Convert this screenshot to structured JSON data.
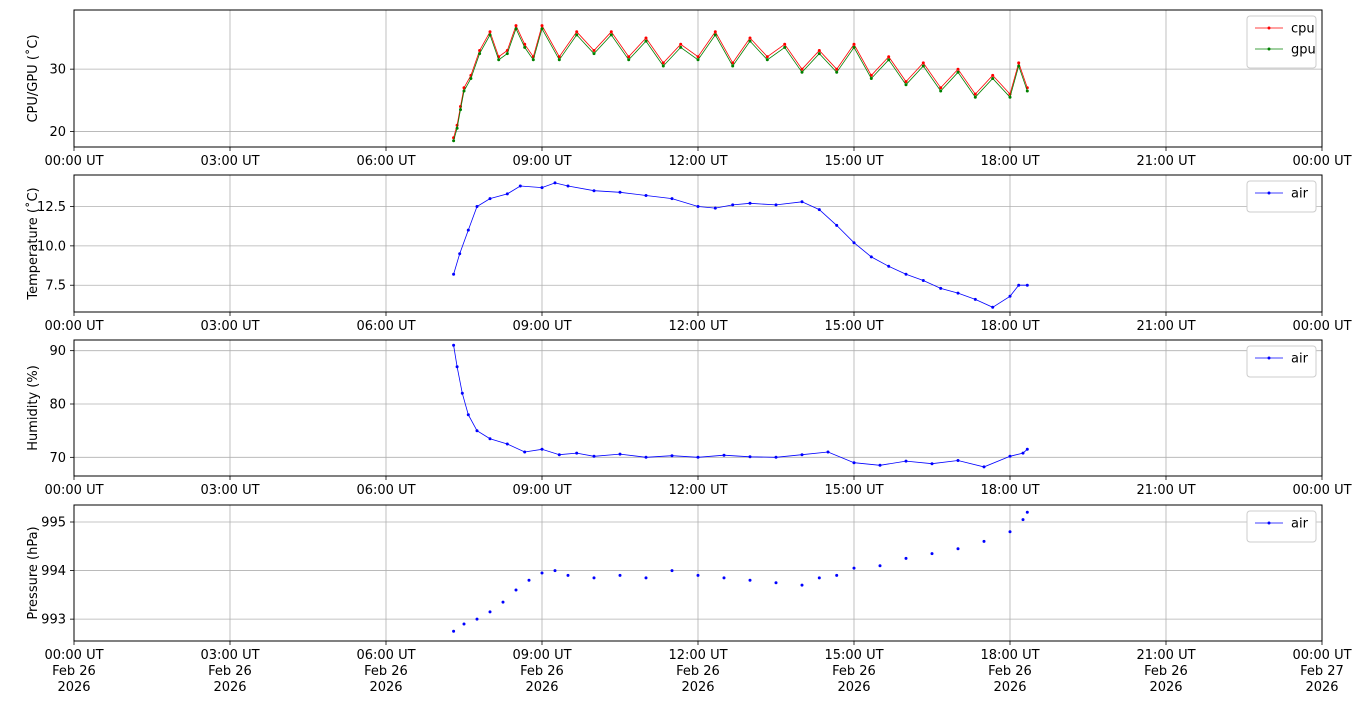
{
  "chart_data": [
    {
      "type": "line",
      "ylabel": "CPU/GPU (˚C)",
      "ylim": [
        17.5,
        39.5
      ],
      "yticks": [
        20,
        30
      ],
      "x_range": [
        "2026-02-26T00:00",
        "2026-02-27T00:00"
      ],
      "xtick_labels": [
        "00:00 UT",
        "03:00 UT",
        "06:00 UT",
        "09:00 UT",
        "12:00 UT",
        "15:00 UT",
        "18:00 UT",
        "21:00 UT",
        "00:00 UT"
      ],
      "grid": true,
      "legend": "top-right",
      "series": [
        {
          "name": "cpu",
          "color": "#ff0000",
          "x": [
            "07:18",
            "07:22",
            "07:26",
            "07:30",
            "07:38",
            "07:48",
            "08:00",
            "08:10",
            "08:20",
            "08:30",
            "08:40",
            "08:50",
            "09:00",
            "09:20",
            "09:40",
            "10:00",
            "10:20",
            "10:40",
            "11:00",
            "11:20",
            "11:40",
            "12:00",
            "12:20",
            "12:40",
            "13:00",
            "13:20",
            "13:40",
            "14:00",
            "14:20",
            "14:40",
            "15:00",
            "15:20",
            "15:40",
            "16:00",
            "16:20",
            "16:40",
            "17:00",
            "17:20",
            "17:40",
            "18:00",
            "18:10",
            "18:20"
          ],
          "y": [
            19,
            21,
            24,
            27,
            29,
            33,
            36,
            32,
            33,
            37,
            34,
            32,
            37,
            32,
            36,
            33,
            36,
            32,
            35,
            31,
            34,
            32,
            36,
            31,
            35,
            32,
            34,
            30,
            33,
            30,
            34,
            29,
            32,
            28,
            31,
            27,
            30,
            26,
            29,
            26,
            31,
            27
          ]
        },
        {
          "name": "gpu",
          "color": "#008000",
          "x": [
            "07:18",
            "07:22",
            "07:26",
            "07:30",
            "07:38",
            "07:48",
            "08:00",
            "08:10",
            "08:20",
            "08:30",
            "08:40",
            "08:50",
            "09:00",
            "09:20",
            "09:40",
            "10:00",
            "10:20",
            "10:40",
            "11:00",
            "11:20",
            "11:40",
            "12:00",
            "12:20",
            "12:40",
            "13:00",
            "13:20",
            "13:40",
            "14:00",
            "14:20",
            "14:40",
            "15:00",
            "15:20",
            "15:40",
            "16:00",
            "16:20",
            "16:40",
            "17:00",
            "17:20",
            "17:40",
            "18:00",
            "18:10",
            "18:20"
          ],
          "y": [
            18.5,
            20.5,
            23.5,
            26.5,
            28.5,
            32.5,
            35.5,
            31.5,
            32.5,
            36.5,
            33.5,
            31.5,
            36.5,
            31.5,
            35.5,
            32.5,
            35.5,
            31.5,
            34.5,
            30.5,
            33.5,
            31.5,
            35.5,
            30.5,
            34.5,
            31.5,
            33.5,
            29.5,
            32.5,
            29.5,
            33.5,
            28.5,
            31.5,
            27.5,
            30.5,
            26.5,
            29.5,
            25.5,
            28.5,
            25.5,
            30.5,
            26.5
          ]
        }
      ]
    },
    {
      "type": "line",
      "ylabel": "Temperature (˚C)",
      "ylim": [
        5.8,
        14.5
      ],
      "yticks": [
        7.5,
        10.0,
        12.5
      ],
      "x_range": [
        "2026-02-26T00:00",
        "2026-02-27T00:00"
      ],
      "xtick_labels": [
        "00:00 UT",
        "03:00 UT",
        "06:00 UT",
        "09:00 UT",
        "12:00 UT",
        "15:00 UT",
        "18:00 UT",
        "21:00 UT",
        "00:00 UT"
      ],
      "grid": true,
      "legend": "top-right",
      "series": [
        {
          "name": "air",
          "color": "#0000ff",
          "x": [
            "07:18",
            "07:25",
            "07:35",
            "07:45",
            "08:00",
            "08:20",
            "08:35",
            "09:00",
            "09:15",
            "09:30",
            "10:00",
            "10:30",
            "11:00",
            "11:30",
            "12:00",
            "12:20",
            "12:40",
            "13:00",
            "13:30",
            "14:00",
            "14:20",
            "14:40",
            "15:00",
            "15:20",
            "15:40",
            "16:00",
            "16:20",
            "16:40",
            "17:00",
            "17:20",
            "17:40",
            "18:00",
            "18:10",
            "18:20"
          ],
          "y": [
            8.2,
            9.5,
            11.0,
            12.5,
            13.0,
            13.3,
            13.8,
            13.7,
            14.0,
            13.8,
            13.5,
            13.4,
            13.2,
            13.0,
            12.5,
            12.4,
            12.6,
            12.7,
            12.6,
            12.8,
            12.3,
            11.3,
            10.2,
            9.3,
            8.7,
            8.2,
            7.8,
            7.3,
            7.0,
            6.6,
            6.1,
            6.8,
            7.5,
            7.5
          ]
        }
      ]
    },
    {
      "type": "line",
      "ylabel": "Humidity (%)",
      "ylim": [
        66.5,
        92
      ],
      "yticks": [
        70,
        80,
        90
      ],
      "x_range": [
        "2026-02-26T00:00",
        "2026-02-27T00:00"
      ],
      "xtick_labels": [
        "00:00 UT",
        "03:00 UT",
        "06:00 UT",
        "09:00 UT",
        "12:00 UT",
        "15:00 UT",
        "18:00 UT",
        "21:00 UT",
        "00:00 UT"
      ],
      "grid": true,
      "legend": "top-right",
      "series": [
        {
          "name": "air",
          "color": "#0000ff",
          "x": [
            "07:18",
            "07:22",
            "07:28",
            "07:35",
            "07:45",
            "08:00",
            "08:20",
            "08:40",
            "09:00",
            "09:20",
            "09:40",
            "10:00",
            "10:30",
            "11:00",
            "11:30",
            "12:00",
            "12:30",
            "13:00",
            "13:30",
            "14:00",
            "14:30",
            "15:00",
            "15:30",
            "16:00",
            "16:30",
            "17:00",
            "17:30",
            "18:00",
            "18:15",
            "18:20"
          ],
          "y": [
            91,
            87,
            82,
            78,
            75,
            73.5,
            72.5,
            71,
            71.5,
            70.5,
            70.8,
            70.2,
            70.6,
            70,
            70.3,
            70,
            70.4,
            70.1,
            70,
            70.5,
            71,
            69,
            68.5,
            69.3,
            68.8,
            69.4,
            68.2,
            70.2,
            70.8,
            71.5
          ]
        }
      ]
    },
    {
      "type": "scatter",
      "ylabel": "Pressure (hPa)",
      "ylim": [
        992.55,
        995.35
      ],
      "yticks": [
        993,
        994,
        995
      ],
      "x_range": [
        "2026-02-26T00:00",
        "2026-02-27T00:00"
      ],
      "xtick_labels": [
        "00:00 UT\nFeb 26\n2026",
        "03:00 UT\nFeb 26\n2026",
        "06:00 UT\nFeb 26\n2026",
        "09:00 UT\nFeb 26\n2026",
        "12:00 UT\nFeb 26\n2026",
        "15:00 UT\nFeb 26\n2026",
        "18:00 UT\nFeb 26\n2026",
        "21:00 UT\nFeb 26\n2026",
        "00:00 UT\nFeb 27\n2026"
      ],
      "grid": true,
      "legend": "top-right",
      "series": [
        {
          "name": "air",
          "color": "#0000ff",
          "x": [
            "07:18",
            "07:30",
            "07:45",
            "08:00",
            "08:15",
            "08:30",
            "08:45",
            "09:00",
            "09:15",
            "09:30",
            "10:00",
            "10:30",
            "11:00",
            "11:30",
            "12:00",
            "12:30",
            "13:00",
            "13:30",
            "14:00",
            "14:20",
            "14:40",
            "15:00",
            "15:30",
            "16:00",
            "16:30",
            "17:00",
            "17:30",
            "18:00",
            "18:15",
            "18:20"
          ],
          "y": [
            992.75,
            992.9,
            993.0,
            993.15,
            993.35,
            993.6,
            993.8,
            993.95,
            994.0,
            993.9,
            993.85,
            993.9,
            993.85,
            994.0,
            993.9,
            993.85,
            993.8,
            993.75,
            993.7,
            993.85,
            993.9,
            994.05,
            994.1,
            994.25,
            994.35,
            994.45,
            994.6,
            994.8,
            995.05,
            995.2
          ]
        }
      ]
    }
  ]
}
